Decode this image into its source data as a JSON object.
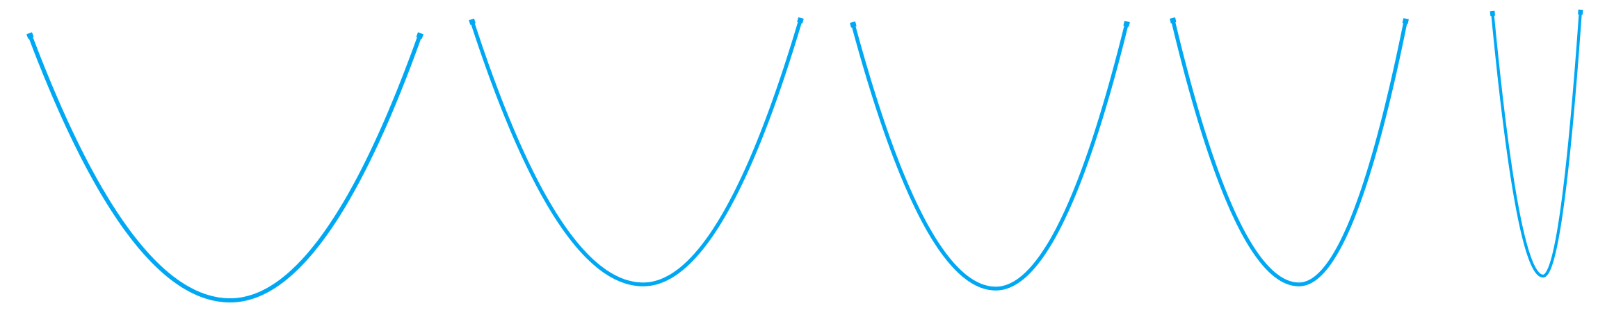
{
  "diagram": {
    "background": "#ffffff",
    "stroke_color": "#00a8f3",
    "panel_count": 5,
    "curves": [
      {
        "shape": "parabola",
        "opening": "up",
        "relative_width": "wide"
      },
      {
        "shape": "parabola",
        "opening": "up",
        "relative_width": "wide"
      },
      {
        "shape": "parabola",
        "opening": "up",
        "relative_width": "medium"
      },
      {
        "shape": "parabola",
        "opening": "up",
        "relative_width": "medium"
      },
      {
        "shape": "parabola",
        "opening": "up",
        "relative_width": "narrow"
      }
    ]
  }
}
